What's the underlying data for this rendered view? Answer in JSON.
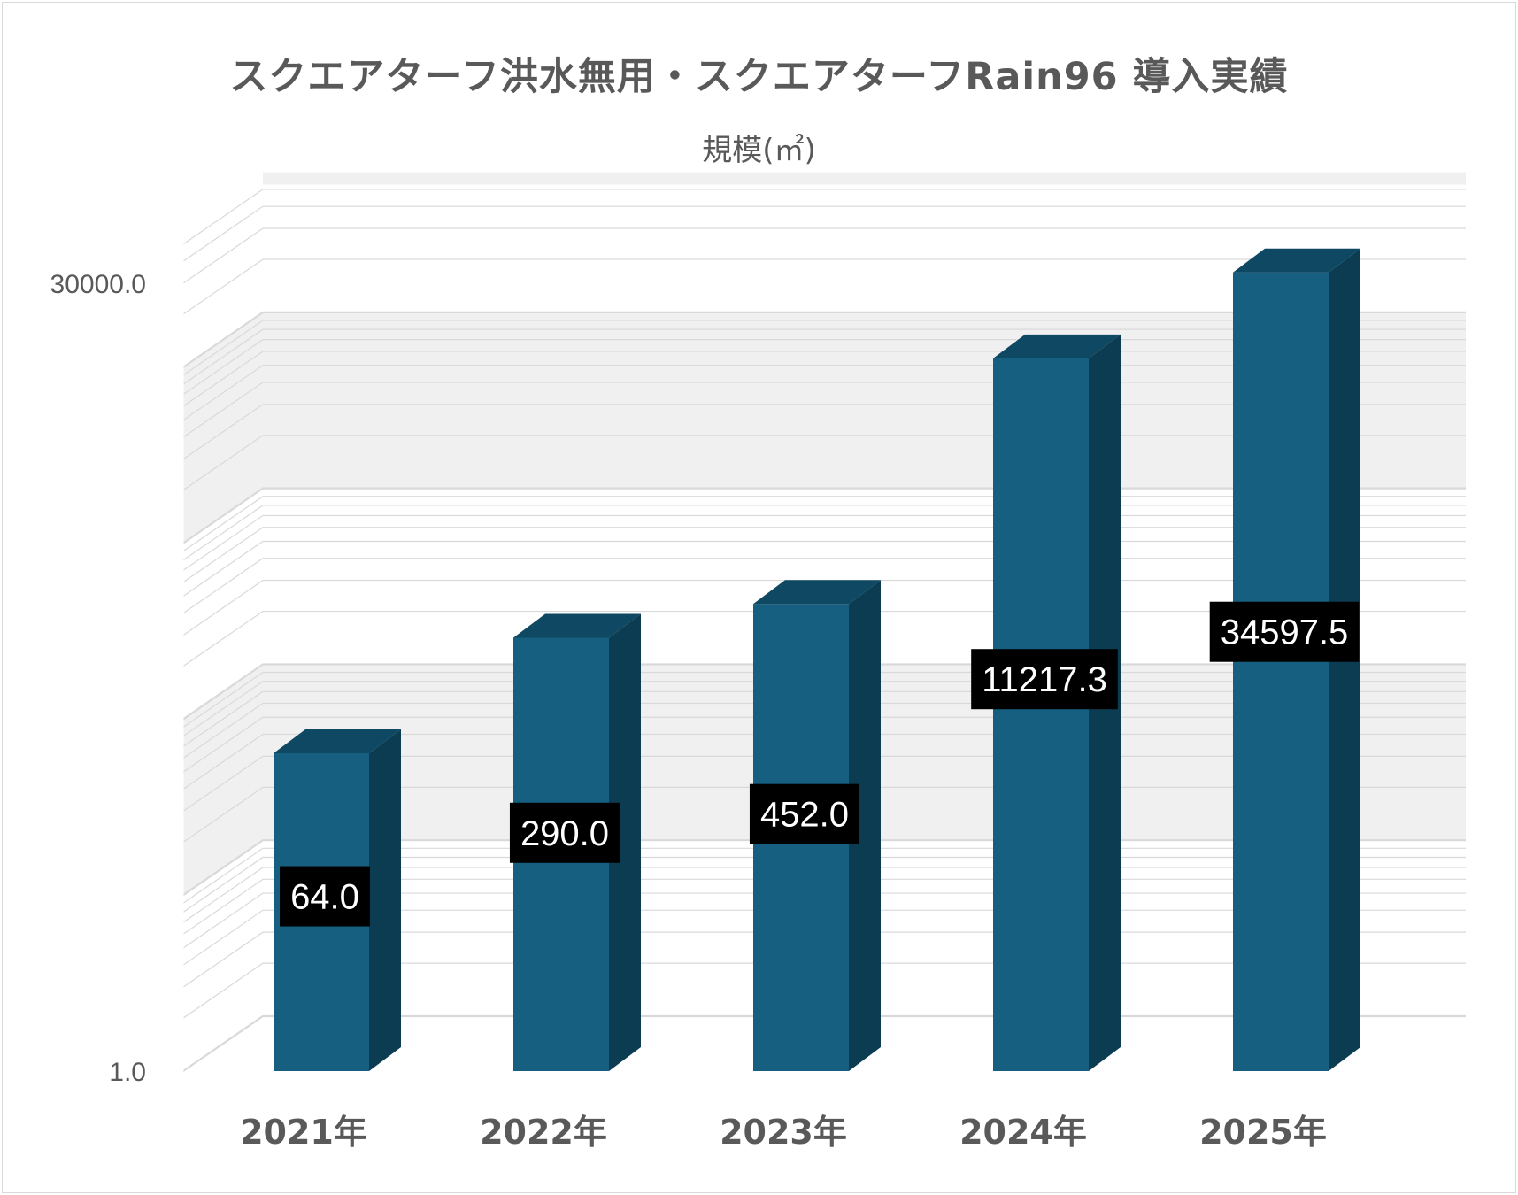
{
  "chart_data": {
    "type": "bar",
    "title": "スクエアターフ洪水無用・スクエアターフRain96 導入実績",
    "subtitle": "規模(㎡)",
    "categories": [
      "2021年",
      "2022年",
      "2023年",
      "2024年",
      "2025年"
    ],
    "series": [
      {
        "values": [
          64.0,
          290.0,
          452.0,
          11217.3,
          34597.5
        ],
        "data_labels": [
          "64.0",
          "290.0",
          "452.0",
          "11217.3",
          "34597.5"
        ]
      }
    ],
    "y_axis": {
      "scale": "log",
      "range": [
        1.0,
        30000.0
      ],
      "tick_labels": [
        "1.0",
        "30000.0"
      ]
    },
    "style": "3d-column",
    "grid": true,
    "legend": "none"
  },
  "colors": {
    "bar_front": "#165f80",
    "bar_top": "#0f4863",
    "bar_side": "#0c3c51",
    "label_bg": "#000000",
    "label_text": "#ffffff",
    "text": "#595959",
    "grid": "#d9d9d9",
    "wall_band": "#f0f0f0"
  }
}
